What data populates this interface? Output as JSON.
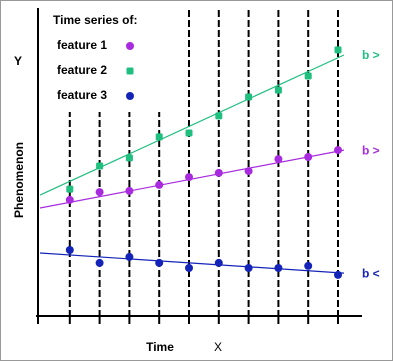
{
  "chart_data": {
    "type": "scatter",
    "y_label": "Y",
    "y_axis_title": "Phenomenon",
    "x_axis_title": "Time",
    "x_label": "X",
    "legend_title": "Time series of:",
    "x": [
      1,
      2,
      3,
      4,
      5,
      6,
      7,
      8,
      9,
      10
    ],
    "xlim": [
      0,
      11
    ],
    "ylim": [
      0,
      100
    ],
    "trend_x": [
      0,
      10.2
    ],
    "series": [
      {
        "name": "feature 1",
        "color": "#a92be0",
        "marker": "circle",
        "values": [
          38.7,
          41.3,
          41.7,
          43.7,
          46.3,
          47.7,
          48.3,
          52.3,
          53,
          55.3
        ],
        "trend": [
          36,
          55.3
        ],
        "annotation": "b >"
      },
      {
        "name": "feature 2",
        "color": "#1fbf7f",
        "marker": "square",
        "values": [
          42.3,
          50,
          52.7,
          59.7,
          61,
          66.7,
          73,
          75.3,
          80,
          88.7
        ],
        "trend": [
          40.3,
          87
        ],
        "annotation": "b >"
      },
      {
        "name": "feature 3",
        "color": "#1424b8",
        "marker": "circle",
        "values": [
          22,
          17.7,
          19.7,
          17.7,
          16,
          17.7,
          16,
          16,
          16.7,
          13.7
        ],
        "trend": [
          21,
          14.3
        ],
        "annotation": "b <"
      }
    ]
  }
}
